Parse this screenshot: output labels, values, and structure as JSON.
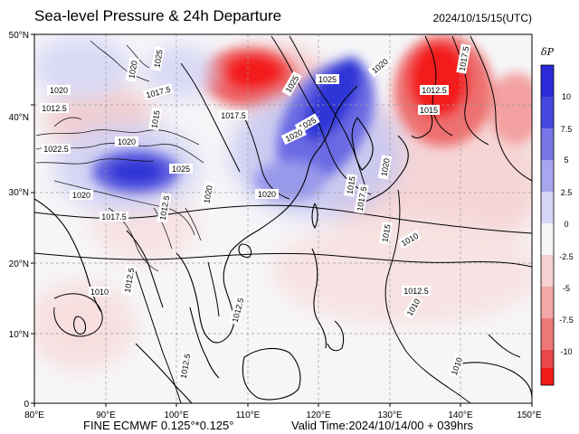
{
  "header": {
    "title": "Sea-level Pressure & 24h Departure",
    "timestamp": "2024/10/15/15(UTC)"
  },
  "footer": {
    "model": "FINE ECMWF 0.125°*0.125°",
    "valid_time": "Valid Time:2024/10/14/00 + 039hrs"
  },
  "map": {
    "lon_labels": [
      "80°E",
      "90°E",
      "100°E",
      "110°E",
      "120°E",
      "130°E",
      "140°E",
      "150°E"
    ],
    "lat_labels": [
      "50°N",
      "40°N",
      "30°N",
      "20°N",
      "10°N",
      "0"
    ],
    "isobar_labels": [
      "1020",
      "1025",
      "1020",
      "1017.5",
      "1012.5",
      "1015",
      "1022.5",
      "1020",
      "1025",
      "1020",
      "1017.5",
      "1020",
      "1017.5",
      "1025",
      "1020",
      "1025",
      "1025",
      "1020",
      "1020",
      "1020",
      "1017.5",
      "1015",
      "1012.5",
      "1010",
      "1017.5",
      "1012.5",
      "1015",
      "1012.5",
      "1010",
      "1012.5",
      "1010",
      "1012.5",
      "1015",
      "1012.5",
      "1010"
    ],
    "colors": {
      "positive_strong": "#f52010",
      "positive_light": "#f6d0d0",
      "negative_strong": "#2e34d6",
      "negative_light": "#d6d6f6",
      "neutral": "#f6f6f8",
      "land_outline": "#000000",
      "isobar": "#000000"
    }
  },
  "colorbar": {
    "title": "δP",
    "labels": [
      "10",
      "7.5",
      "5",
      "2.5",
      "0",
      "-2.5",
      "-5",
      "-7.5",
      "-10"
    ],
    "colors": [
      "#2a2ad8",
      "#4848e0",
      "#7676e6",
      "#a6a6ee",
      "#d6d6f6",
      "#f6f6f8",
      "#f6d0d0",
      "#f3a8a8",
      "#ee7878",
      "#ea4848",
      "#f31a1a"
    ]
  }
}
